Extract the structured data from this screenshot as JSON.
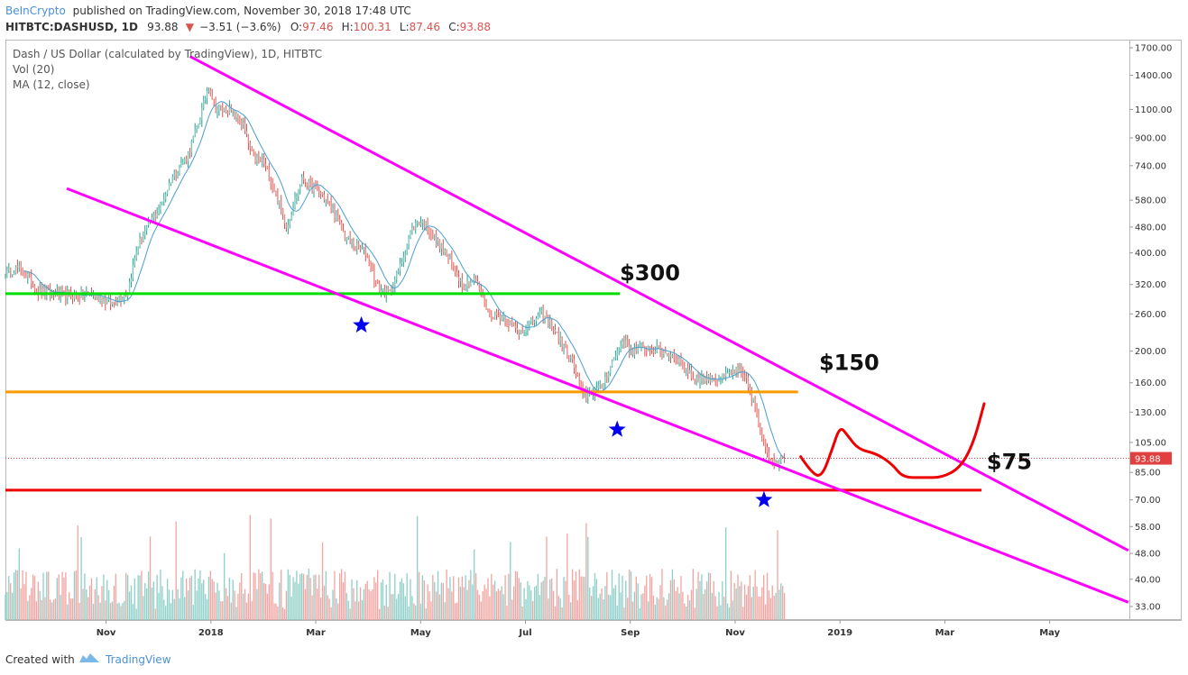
{
  "header": {
    "publisher": "BeInCrypto",
    "published_text": "published on TradingView.com, November 30, 2018 17:48 UTC",
    "symbol": "HITBTC:DASHUSD, 1D",
    "last": "93.88",
    "change": "−3.51 (−3.6%)",
    "open_label": "O:",
    "open": "97.46",
    "high_label": "H:",
    "high": "100.31",
    "low_label": "L:",
    "low": "87.46",
    "close_label": "C:",
    "close": "93.88"
  },
  "legend": {
    "title": "Dash / US Dollar (calculated by TradingView), 1D, HITBTC",
    "vol": "Vol (20)",
    "ma": "MA (12, close)"
  },
  "footer": {
    "created_with": "Created with",
    "brand": "TradingView"
  },
  "colors": {
    "up": "#7fc8be",
    "down": "#e98a86",
    "up_dark": "#2a9d8f",
    "down_dark": "#d9534f",
    "vol_up": "#8fd0c8",
    "vol_down": "#f2a6a3",
    "ma": "#4a9fd1",
    "channel": "#ff00ff",
    "green_line": "#00dd00",
    "orange_line": "#ff9900",
    "red_line": "#ee0000",
    "star": "#0000ee",
    "price_tag": "#e04040"
  },
  "chart_data": {
    "type": "candlestick",
    "title": "Dash / US Dollar (calculated by TradingView), 1D, HITBTC",
    "y_scale": "log",
    "ylim": [
      30,
      1800
    ],
    "y_ticks": [
      1700,
      1400,
      1100,
      900,
      740,
      580,
      480,
      400,
      320,
      260,
      200,
      160,
      130,
      105,
      85,
      70,
      58,
      48,
      40,
      33
    ],
    "y_tick_labels": [
      "1700.00",
      "1400.00",
      "1100.00",
      "900.00",
      "740.00",
      "580.00",
      "480.00",
      "400.00",
      "320.00",
      "260.00",
      "200.00",
      "160.00",
      "130.00",
      "105.00",
      "85.00",
      "70.00",
      "58.00",
      "48.00",
      "40.00",
      "33.00"
    ],
    "x_range_months": [
      -3.92,
      17.52
    ],
    "x_ticks": [
      {
        "label": "Nov",
        "t": -2
      },
      {
        "label": "2018",
        "t": 0
      },
      {
        "label": "Mar",
        "t": 2
      },
      {
        "label": "May",
        "t": 4
      },
      {
        "label": "Jul",
        "t": 6
      },
      {
        "label": "Sep",
        "t": 8
      },
      {
        "label": "Nov",
        "t": 10
      },
      {
        "label": "2019",
        "t": 12
      },
      {
        "label": "Mar",
        "t": 14
      },
      {
        "label": "May",
        "t": 16
      }
    ],
    "price_anchors": [
      {
        "t": -3.92,
        "p": 345
      },
      {
        "t": -3.7,
        "p": 360
      },
      {
        "t": -3.5,
        "p": 340
      },
      {
        "t": -3.3,
        "p": 305
      },
      {
        "t": -3.0,
        "p": 300
      },
      {
        "t": -2.6,
        "p": 295
      },
      {
        "t": -2.3,
        "p": 300
      },
      {
        "t": -1.9,
        "p": 280
      },
      {
        "t": -1.6,
        "p": 300
      },
      {
        "t": -1.4,
        "p": 420
      },
      {
        "t": -1.15,
        "p": 500
      },
      {
        "t": -0.95,
        "p": 560
      },
      {
        "t": -0.75,
        "p": 680
      },
      {
        "t": -0.45,
        "p": 790
      },
      {
        "t": -0.2,
        "p": 1050
      },
      {
        "t": -0.05,
        "p": 1300
      },
      {
        "t": 0.1,
        "p": 1100
      },
      {
        "t": 0.35,
        "p": 1100
      },
      {
        "t": 0.6,
        "p": 1000
      },
      {
        "t": 0.8,
        "p": 780
      },
      {
        "t": 1.0,
        "p": 760
      },
      {
        "t": 1.25,
        "p": 600
      },
      {
        "t": 1.45,
        "p": 480
      },
      {
        "t": 1.6,
        "p": 580
      },
      {
        "t": 1.75,
        "p": 680
      },
      {
        "t": 1.9,
        "p": 640
      },
      {
        "t": 2.1,
        "p": 610
      },
      {
        "t": 2.3,
        "p": 550
      },
      {
        "t": 2.55,
        "p": 450
      },
      {
        "t": 2.75,
        "p": 420
      },
      {
        "t": 2.95,
        "p": 400
      },
      {
        "t": 3.2,
        "p": 310
      },
      {
        "t": 3.4,
        "p": 300
      },
      {
        "t": 3.6,
        "p": 360
      },
      {
        "t": 3.8,
        "p": 460
      },
      {
        "t": 3.95,
        "p": 500
      },
      {
        "t": 4.1,
        "p": 490
      },
      {
        "t": 4.3,
        "p": 440
      },
      {
        "t": 4.55,
        "p": 380
      },
      {
        "t": 4.8,
        "p": 320
      },
      {
        "t": 5.05,
        "p": 330
      },
      {
        "t": 5.3,
        "p": 260
      },
      {
        "t": 5.6,
        "p": 255
      },
      {
        "t": 5.85,
        "p": 230
      },
      {
        "t": 6.05,
        "p": 240
      },
      {
        "t": 6.3,
        "p": 260
      },
      {
        "t": 6.5,
        "p": 240
      },
      {
        "t": 6.7,
        "p": 210
      },
      {
        "t": 6.9,
        "p": 185
      },
      {
        "t": 7.1,
        "p": 145
      },
      {
        "t": 7.25,
        "p": 150
      },
      {
        "t": 7.45,
        "p": 155
      },
      {
        "t": 7.65,
        "p": 185
      },
      {
        "t": 7.85,
        "p": 215
      },
      {
        "t": 8.05,
        "p": 200
      },
      {
        "t": 8.3,
        "p": 205
      },
      {
        "t": 8.6,
        "p": 200
      },
      {
        "t": 8.9,
        "p": 190
      },
      {
        "t": 9.2,
        "p": 165
      },
      {
        "t": 9.5,
        "p": 165
      },
      {
        "t": 9.75,
        "p": 165
      },
      {
        "t": 10.0,
        "p": 175
      },
      {
        "t": 10.2,
        "p": 165
      },
      {
        "t": 10.35,
        "p": 140
      },
      {
        "t": 10.5,
        "p": 110
      },
      {
        "t": 10.65,
        "p": 95
      },
      {
        "t": 10.8,
        "p": 92
      },
      {
        "t": 10.95,
        "p": 93.88
      }
    ],
    "last_t": 10.95,
    "last_price": 93.88,
    "annotations": [
      {
        "text": "$300",
        "t": 7.8,
        "p": 330
      },
      {
        "text": "$150",
        "t": 11.6,
        "p": 175
      },
      {
        "text": "$75",
        "t": 14.8,
        "p": 87
      }
    ],
    "levels": [
      {
        "name": "green",
        "p": 300,
        "t0": -3.92,
        "t1": 7.8
      },
      {
        "name": "orange",
        "p": 150,
        "t0": -3.92,
        "t1": 11.2
      },
      {
        "name": "red",
        "p": 75,
        "t0": -3.92,
        "t1": 14.7
      }
    ],
    "channel_upper": [
      {
        "t": -0.4,
        "p": 1600
      },
      {
        "t": 17.5,
        "p": 49
      }
    ],
    "channel_lower": [
      {
        "t": -2.75,
        "p": 630
      },
      {
        "t": 17.5,
        "p": 34
      }
    ],
    "stars": [
      {
        "t": 2.87,
        "p": 240
      },
      {
        "t": 7.75,
        "p": 115
      },
      {
        "t": 10.55,
        "p": 70
      }
    ],
    "projection": [
      {
        "t": 11.25,
        "p": 95
      },
      {
        "t": 11.45,
        "p": 85
      },
      {
        "t": 11.65,
        "p": 82
      },
      {
        "t": 11.85,
        "p": 100
      },
      {
        "t": 12.0,
        "p": 118
      },
      {
        "t": 12.15,
        "p": 110
      },
      {
        "t": 12.35,
        "p": 100
      },
      {
        "t": 12.7,
        "p": 97
      },
      {
        "t": 13.0,
        "p": 90
      },
      {
        "t": 13.2,
        "p": 82
      },
      {
        "t": 13.6,
        "p": 82
      },
      {
        "t": 13.95,
        "p": 82
      },
      {
        "t": 14.3,
        "p": 88
      },
      {
        "t": 14.55,
        "p": 105
      },
      {
        "t": 14.75,
        "p": 138
      }
    ]
  }
}
